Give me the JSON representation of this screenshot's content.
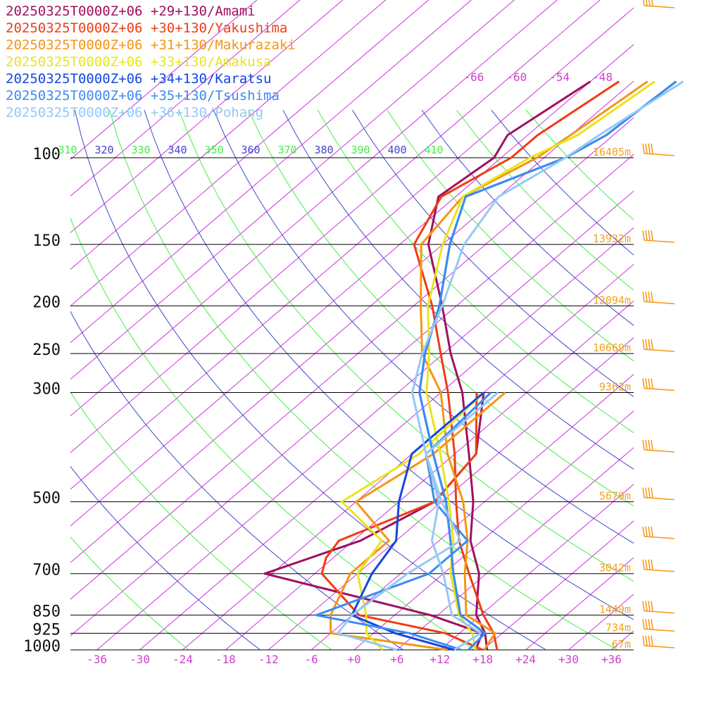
{
  "legend": [
    {
      "label": "20250325T0000Z+06 +29+130/Amami",
      "color": "#a0105e"
    },
    {
      "label": "20250325T0000Z+06 +30+130/Yakushima",
      "color": "#f03c14"
    },
    {
      "label": "20250325T0000Z+06 +31+130/Makurazaki",
      "color": "#f59614"
    },
    {
      "label": "20250325T0000Z+06 +33+130/Amakusa",
      "color": "#e8e41e"
    },
    {
      "label": "20250325T0000Z+06 +34+130/Karatsu",
      "color": "#1446e0"
    },
    {
      "label": "20250325T0000Z+06 +35+130/Tsushima",
      "color": "#3c8cf0"
    },
    {
      "label": "20250325T0000Z+06 +36+130/Pohang",
      "color": "#96c8f5"
    }
  ],
  "chart_data": {
    "type": "line",
    "title": "",
    "xlabel": "",
    "ylabel": "",
    "xlim": [
      -40,
      40
    ],
    "y_scale": "log",
    "ylim": [
      1000,
      100
    ],
    "pressure_levels": [
      {
        "p": 100,
        "label": "100",
        "height": "16405m"
      },
      {
        "p": 150,
        "label": "150",
        "height": "13932m"
      },
      {
        "p": 200,
        "label": "200",
        "height": "12094m"
      },
      {
        "p": 250,
        "label": "250",
        "height": "10669m"
      },
      {
        "p": 300,
        "label": "300",
        "height": "9362m"
      },
      {
        "p": 500,
        "label": "500",
        "height": "5679m"
      },
      {
        "p": 700,
        "label": "700",
        "height": "3042m"
      },
      {
        "p": 850,
        "label": "850",
        "height": "1449m"
      },
      {
        "p": 925,
        "label": "925",
        "height": "734m"
      },
      {
        "p": 1000,
        "label": "1000",
        "height": "67m"
      }
    ],
    "x_ticks": [
      {
        "v": -36,
        "label": "-36"
      },
      {
        "v": -30,
        "label": "-30"
      },
      {
        "v": -24,
        "label": "-24"
      },
      {
        "v": -18,
        "label": "-18"
      },
      {
        "v": -12,
        "label": "-12"
      },
      {
        "v": -6,
        "label": "-6"
      },
      {
        "v": 0,
        "label": "+0"
      },
      {
        "v": 6,
        "label": "+6"
      },
      {
        "v": 12,
        "label": "+12"
      },
      {
        "v": 18,
        "label": "+18"
      },
      {
        "v": 24,
        "label": "+24"
      },
      {
        "v": 30,
        "label": "+30"
      },
      {
        "v": 36,
        "label": "+36"
      }
    ],
    "isotherm_labels_top": [
      "-66",
      "-60",
      "-54",
      "-48"
    ],
    "theta_labels": [
      {
        "label": "310",
        "color": "#44ee44"
      },
      {
        "label": "320",
        "color": "#4444cc"
      },
      {
        "label": "330",
        "color": "#44ee44"
      },
      {
        "label": "340",
        "color": "#4444cc"
      },
      {
        "label": "350",
        "color": "#44ee44"
      },
      {
        "label": "360",
        "color": "#4444cc"
      },
      {
        "label": "370",
        "color": "#44ee44"
      },
      {
        "label": "380",
        "color": "#4444cc"
      },
      {
        "label": "390",
        "color": "#44ee44"
      },
      {
        "label": "400",
        "color": "#4444cc"
      },
      {
        "label": "410",
        "color": "#44ee44"
      }
    ],
    "series": [
      {
        "name": "20250325T0000Z+06 +29+130/Amami",
        "color": "#a0105e",
        "temperature": [
          [
            1000,
            18.6
          ],
          [
            925,
            15.6
          ],
          [
            850,
            11.4
          ],
          [
            700,
            5.0
          ],
          [
            600,
            -1.6
          ],
          [
            500,
            -7.6
          ],
          [
            400,
            -16.0
          ],
          [
            300,
            -27.0
          ],
          [
            250,
            -35.0
          ],
          [
            200,
            -44.0
          ],
          [
            150,
            -56.0
          ],
          [
            120,
            -62.4
          ],
          [
            100,
            -61.0
          ],
          [
            90,
            -62.8
          ],
          [
            70,
            -60.0
          ]
        ],
        "dewpoint": [
          [
            1000,
            17.0
          ],
          [
            925,
            15.2
          ],
          [
            850,
            5.0
          ],
          [
            700,
            -25.0
          ],
          [
            600,
            -17.0
          ],
          [
            500,
            -13.0
          ],
          [
            400,
            -15.0
          ],
          [
            300,
            -24.0
          ]
        ]
      },
      {
        "name": "20250325T0000Z+06 +30+130/Yakushima",
        "color": "#f03c14",
        "temperature": [
          [
            1000,
            20.0
          ],
          [
            925,
            16.8
          ],
          [
            850,
            12.4
          ],
          [
            700,
            3.6
          ],
          [
            600,
            -3.2
          ],
          [
            500,
            -10.0
          ],
          [
            400,
            -18.0
          ],
          [
            300,
            -29.0
          ],
          [
            250,
            -36.4
          ],
          [
            200,
            -45.4
          ],
          [
            150,
            -58.0
          ],
          [
            120,
            -62.0
          ],
          [
            100,
            -58.6
          ],
          [
            90,
            -58.6
          ],
          [
            70,
            -56.0
          ]
        ],
        "dewpoint": [
          [
            1000,
            18.0
          ],
          [
            925,
            10.0
          ],
          [
            850,
            -5.0
          ],
          [
            700,
            -17.0
          ],
          [
            650,
            -19.0
          ],
          [
            600,
            -20.0
          ],
          [
            500,
            -13.0
          ],
          [
            400,
            -15.0
          ],
          [
            300,
            -25.0
          ]
        ]
      },
      {
        "name": "20250325T0000Z+06 +31+130/Makurazaki",
        "color": "#f59614",
        "temperature": [
          [
            1000,
            18.2
          ],
          [
            925,
            17.0
          ],
          [
            850,
            10.0
          ],
          [
            700,
            3.0
          ],
          [
            600,
            -2.0
          ],
          [
            500,
            -9.0
          ],
          [
            400,
            -19.0
          ],
          [
            300,
            -30.0
          ],
          [
            250,
            -39.0
          ],
          [
            200,
            -47.0
          ],
          [
            150,
            -57.0
          ],
          [
            120,
            -59.0
          ],
          [
            100,
            -55.0
          ],
          [
            90,
            -54.0
          ],
          [
            70,
            -52.0
          ]
        ],
        "dewpoint": [
          [
            1000,
            13.0
          ],
          [
            925,
            -6.0
          ],
          [
            850,
            -9.0
          ],
          [
            700,
            -13.0
          ],
          [
            600,
            -13.0
          ],
          [
            500,
            -24.0
          ],
          [
            400,
            -21.0
          ],
          [
            300,
            -21.0
          ]
        ]
      },
      {
        "name": "20250325T0000Z+06 +33+130/Amakusa",
        "color": "#e8e41e",
        "temperature": [
          [
            1000,
            17.0
          ],
          [
            925,
            13.8
          ],
          [
            850,
            9.0
          ],
          [
            700,
            1.0
          ],
          [
            600,
            -4.0
          ],
          [
            500,
            -11.0
          ],
          [
            400,
            -20.0
          ],
          [
            300,
            -32.0
          ],
          [
            250,
            -38.0
          ],
          [
            200,
            -46.0
          ],
          [
            150,
            -54.0
          ],
          [
            120,
            -59.0
          ],
          [
            100,
            -56.0
          ],
          [
            90,
            -53.0
          ],
          [
            70,
            -51.0
          ]
        ],
        "dewpoint": [
          [
            1000,
            4.0
          ],
          [
            925,
            -1.0
          ],
          [
            850,
            -4.0
          ],
          [
            700,
            -12.0
          ],
          [
            600,
            -14.0
          ],
          [
            500,
            -26.0
          ],
          [
            400,
            -23.0
          ],
          [
            300,
            -24.0
          ]
        ]
      },
      {
        "name": "20250325T0000Z+06 +34+130/Karatsu",
        "color": "#1446e0",
        "temperature": [
          [
            1000,
            16.0
          ],
          [
            925,
            15.6
          ],
          [
            850,
            9.2
          ],
          [
            700,
            1.4
          ],
          [
            600,
            -4.4
          ],
          [
            500,
            -11.4
          ],
          [
            400,
            -21.0
          ],
          [
            300,
            -33.0
          ],
          [
            250,
            -38.6
          ],
          [
            200,
            -44.4
          ],
          [
            150,
            -53.0
          ],
          [
            120,
            -58.6
          ],
          [
            100,
            -51.0
          ],
          [
            90,
            -49.0
          ],
          [
            70,
            -48.0
          ]
        ],
        "dewpoint": [
          [
            1000,
            14.0
          ],
          [
            925,
            3.0
          ],
          [
            850,
            -6.0
          ],
          [
            700,
            -10.0
          ],
          [
            600,
            -12.0
          ],
          [
            500,
            -18.0
          ],
          [
            400,
            -24.0
          ],
          [
            300,
            -24.0
          ]
        ]
      },
      {
        "name": "20250325T0000Z+06 +35+130/Tsushima",
        "color": "#3c8cf0",
        "temperature": [
          [
            1000,
            16.0
          ],
          [
            925,
            15.6
          ],
          [
            850,
            9.2
          ],
          [
            700,
            1.4
          ],
          [
            600,
            -4.4
          ],
          [
            500,
            -11.4
          ],
          [
            400,
            -21.0
          ],
          [
            300,
            -33.0
          ],
          [
            250,
            -38.6
          ],
          [
            200,
            -44.4
          ],
          [
            150,
            -53.0
          ],
          [
            120,
            -58.6
          ],
          [
            100,
            -51.0
          ],
          [
            90,
            -49.0
          ],
          [
            70,
            -48.0
          ]
        ],
        "dewpoint": [
          [
            1000,
            15.0
          ],
          [
            925,
            5.0
          ],
          [
            850,
            -11.0
          ],
          [
            700,
            -2.0
          ],
          [
            600,
            -2.0
          ],
          [
            500,
            -13.0
          ],
          [
            400,
            -22.0
          ],
          [
            300,
            -23.0
          ]
        ]
      },
      {
        "name": "20250325T0000Z+06 +36+130/Pohang",
        "color": "#96c8f5",
        "temperature": [
          [
            1000,
            14.0
          ],
          [
            925,
            15.0
          ],
          [
            850,
            8.0
          ],
          [
            700,
            0.0
          ],
          [
            600,
            -7.0
          ],
          [
            500,
            -12.4
          ],
          [
            400,
            -22.0
          ],
          [
            300,
            -34.0
          ],
          [
            250,
            -39.0
          ],
          [
            200,
            -44.0
          ],
          [
            150,
            -51.0
          ],
          [
            120,
            -54.0
          ],
          [
            100,
            -51.0
          ],
          [
            90,
            -50.0
          ],
          [
            70,
            -47.0
          ]
        ],
        "dewpoint": [
          [
            1000,
            6.0
          ],
          [
            925,
            -5.0
          ],
          [
            850,
            -6.0
          ],
          [
            700,
            -5.0
          ],
          [
            600,
            -3.0
          ],
          [
            500,
            -12.0
          ],
          [
            400,
            -22.0
          ],
          [
            300,
            -22.0
          ]
        ]
      }
    ],
    "wind_barb_levels": [
      75,
      100,
      150,
      200,
      250,
      300,
      400,
      500,
      600,
      700,
      850,
      925,
      1000
    ]
  }
}
